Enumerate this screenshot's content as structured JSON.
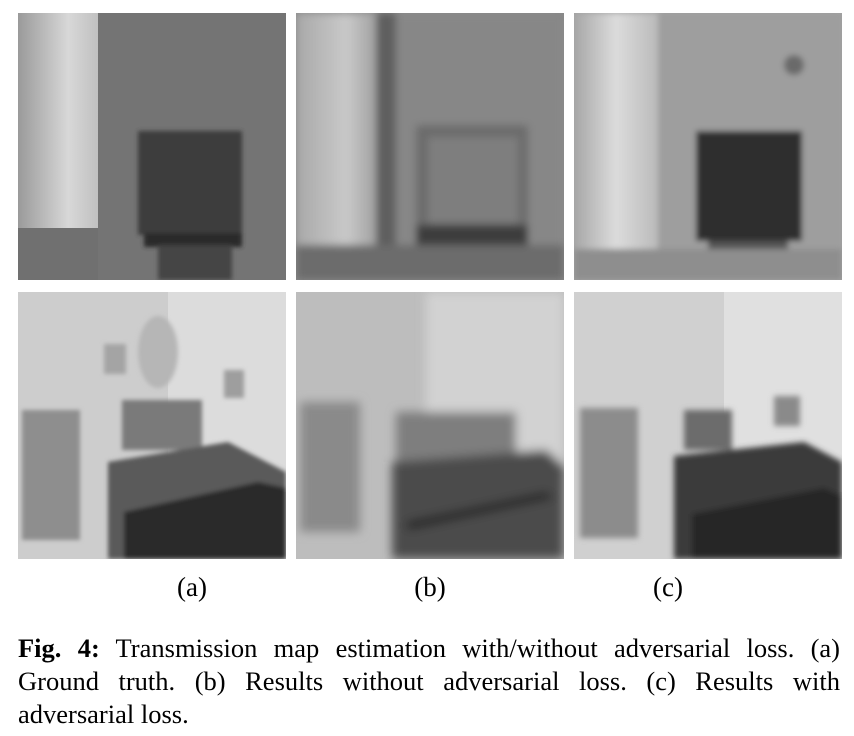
{
  "figure": {
    "panels": [
      {
        "row": 1,
        "column": "a",
        "content": "Ground truth transmission map, scene 1"
      },
      {
        "row": 1,
        "column": "b",
        "content": "Result without adversarial loss, scene 1"
      },
      {
        "row": 1,
        "column": "c",
        "content": "Result with adversarial loss, scene 1"
      },
      {
        "row": 2,
        "column": "a",
        "content": "Ground truth transmission map, scene 2"
      },
      {
        "row": 2,
        "column": "b",
        "content": "Result without adversarial loss, scene 2"
      },
      {
        "row": 2,
        "column": "c",
        "content": "Result with adversarial loss, scene 2"
      }
    ],
    "sublabels": [
      "(a)",
      "(b)",
      "(c)"
    ],
    "caption_label": "Fig. 4:",
    "caption_text": " Transmission map estimation with/without adversarial loss. (a) Ground truth. (b) Results without adversarial loss. (c) Results with adversarial loss."
  }
}
